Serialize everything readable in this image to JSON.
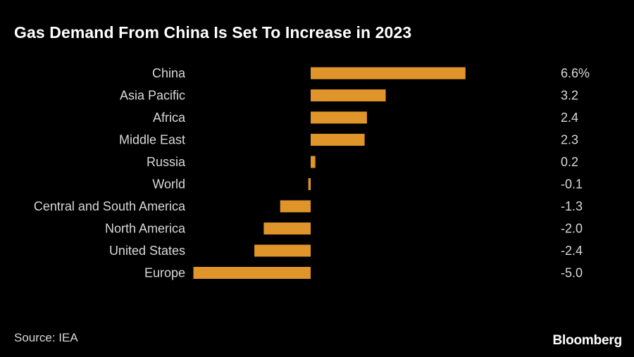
{
  "header": {
    "title": "Gas Demand From China Is Set To Increase in 2023"
  },
  "footer": {
    "source": "Source: IEA",
    "brand": "Bloomberg"
  },
  "colors": {
    "bar": "#e0952a",
    "background": "#000000",
    "text": "#d9d9d9"
  },
  "chart_data": {
    "type": "bar",
    "orientation": "horizontal",
    "categories": [
      "China",
      "Asia Pacific",
      "Africa",
      "Middle East",
      "Russia",
      "World",
      "Central and South America",
      "North America",
      "United States",
      "Europe"
    ],
    "values": [
      6.6,
      3.2,
      2.4,
      2.3,
      0.2,
      -0.1,
      -1.3,
      -2.0,
      -2.4,
      -5.0
    ],
    "value_labels": [
      "6.6%",
      "3.2",
      "2.4",
      "2.3",
      "0.2",
      "-0.1",
      "-1.3",
      "-2.0",
      "-2.4",
      "-5.0"
    ],
    "unit": "%",
    "xlim": [
      -5.0,
      6.6
    ],
    "grid": false,
    "legend": "none"
  }
}
